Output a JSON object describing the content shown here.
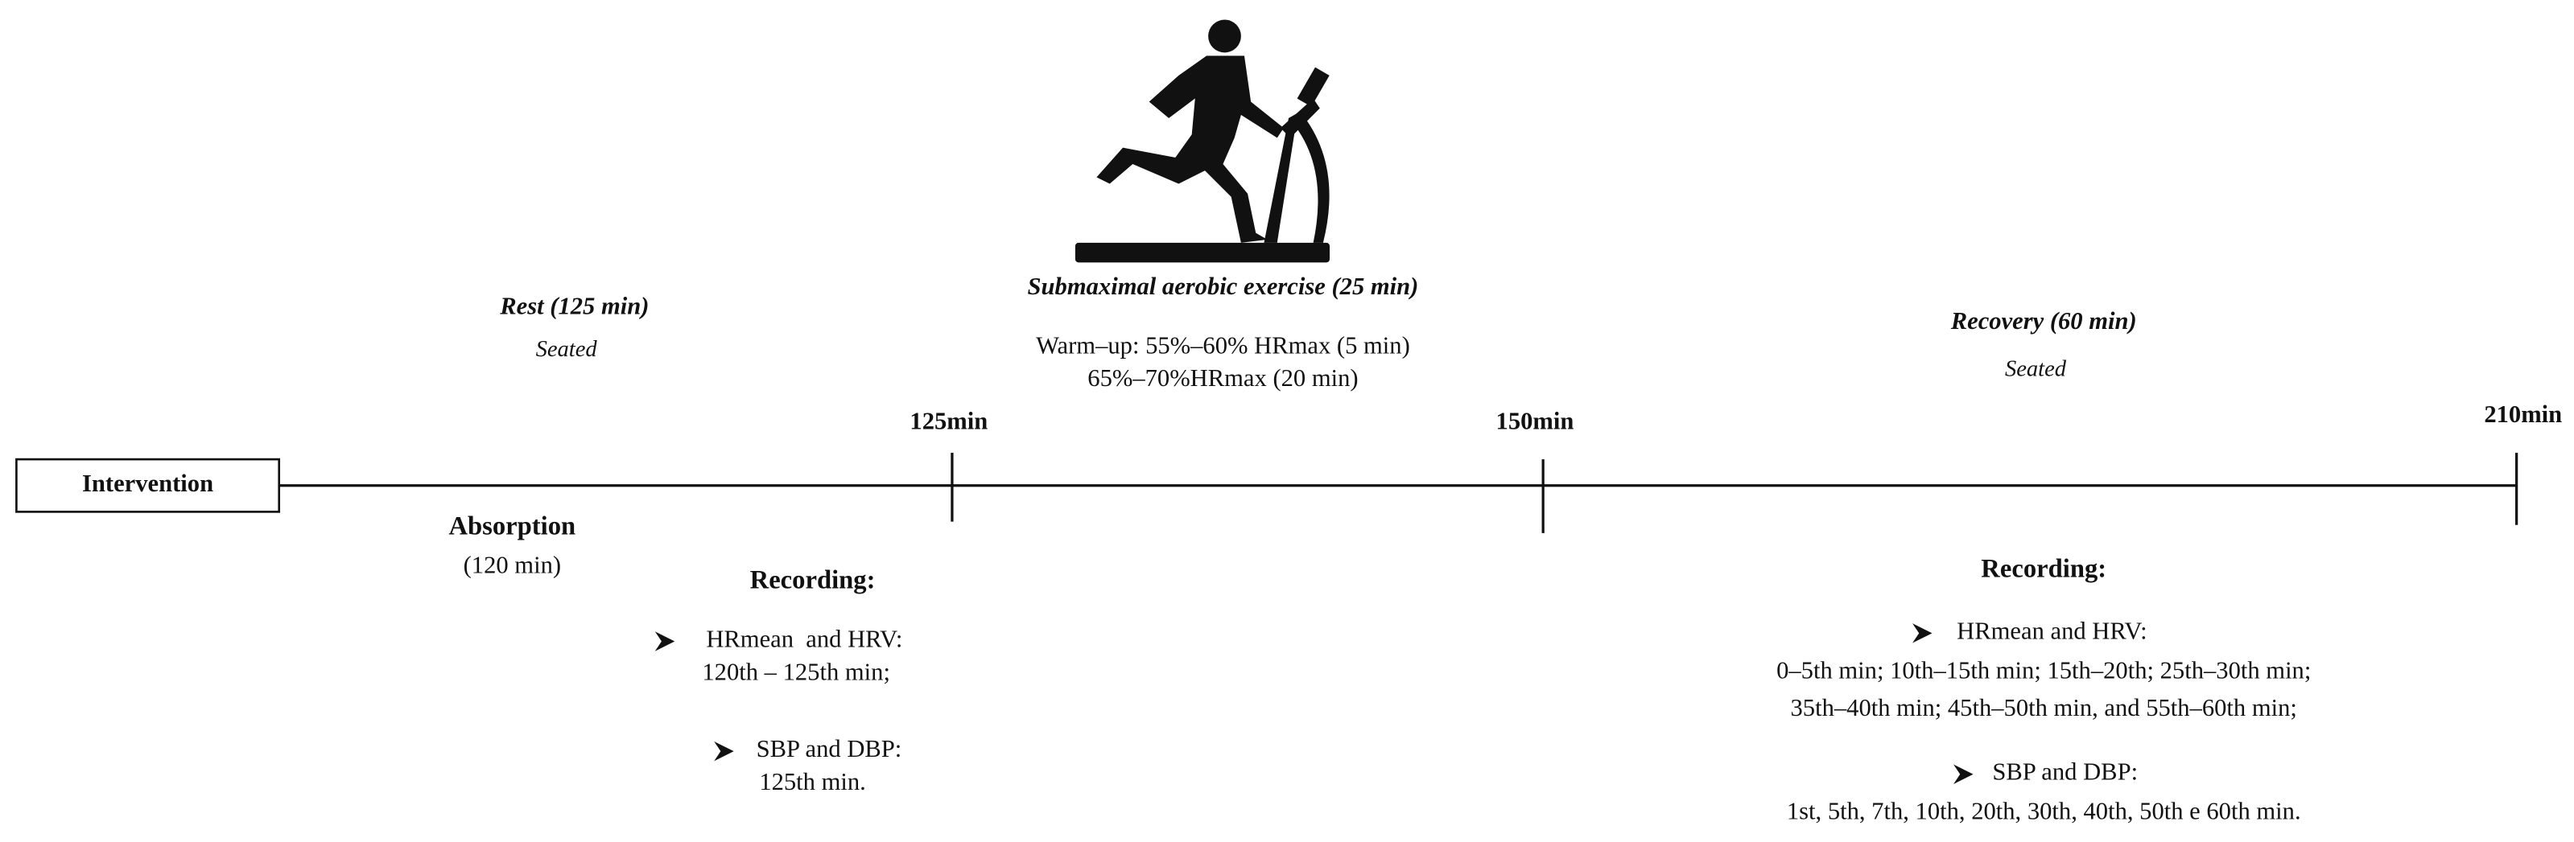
{
  "intervention": "Intervention",
  "timeline": {
    "markers": [
      "125min",
      "150min",
      "210min"
    ]
  },
  "phases": [
    {
      "title": "Rest (125 min)",
      "subtitle": "Seated"
    },
    {
      "title": "Submaximal aerobic exercise (25 min)",
      "details": [
        "Warm–up: 55%–60% HRmax (5 min)",
        "65%–70%HRmax (20 min)"
      ]
    },
    {
      "title": "Recovery (60 min)",
      "subtitle": "Seated"
    }
  ],
  "absorption": {
    "title": "Absorption",
    "duration": "(120 min)"
  },
  "recordings": [
    {
      "title": "Recording:",
      "items": [
        {
          "label": "HRmean  and HRV:",
          "lines": [
            "120th – 125th min;"
          ]
        },
        {
          "label": "SBP and DBP:",
          "lines": [
            "125th min."
          ]
        }
      ]
    },
    {
      "title": "Recording:",
      "items": [
        {
          "label": "HRmean and HRV:",
          "lines": [
            "0–5th min; 10th–15th min; 15th–20th; 25th–30th min;",
            "35th–40th min; 45th–50th min, and 55th–60th min;"
          ]
        },
        {
          "label": "SBP and DBP:",
          "lines": [
            "1st, 5th, 7th, 10th, 20th, 30th, 40th, 50th e 60th min."
          ]
        }
      ]
    }
  ]
}
